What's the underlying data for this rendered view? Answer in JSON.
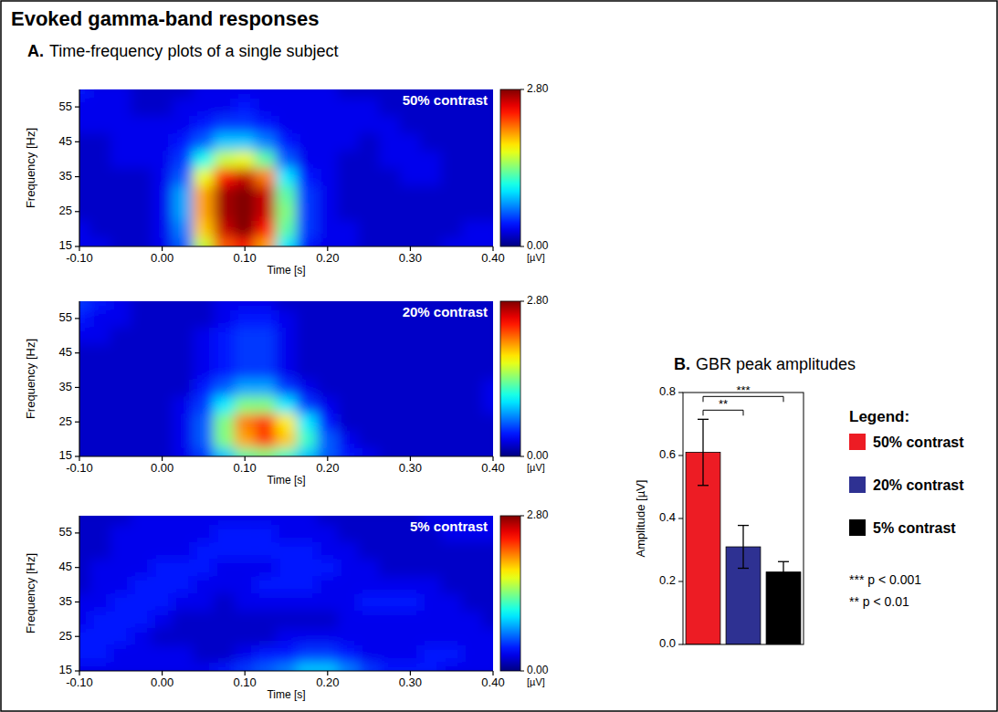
{
  "title": "Evoked gamma-band responses",
  "panels": [
    {
      "label": "A.",
      "title": "Time-frequency plots of a single subject"
    },
    {
      "label": "B.",
      "title": "GBR peak amplitudes"
    }
  ],
  "chart_data": [
    {
      "type": "heatmap",
      "title": "50% contrast",
      "x_label": "Time [s]",
      "y_label": "Frequency [Hz]",
      "x": [
        -0.1,
        -0.075,
        -0.05,
        -0.025,
        0,
        0.025,
        0.05,
        0.075,
        0.1,
        0.125,
        0.15,
        0.175,
        0.2,
        0.225,
        0.25,
        0.275,
        0.3,
        0.325,
        0.35,
        0.375,
        0.4
      ],
      "y": [
        15,
        20,
        25,
        30,
        35,
        40,
        45,
        50,
        55,
        60
      ],
      "cells": [
        [
          0.3,
          0.3,
          0.2,
          0.2,
          0.3,
          0.6,
          1.6,
          2.2,
          2.4,
          2.0,
          1.0,
          0.4,
          0.3,
          0.3,
          0.2,
          0.2,
          0.2,
          0.2,
          0.3,
          0.3,
          0.3
        ],
        [
          0.3,
          0.2,
          0.2,
          0.2,
          0.3,
          0.7,
          1.9,
          2.6,
          2.8,
          2.4,
          1.3,
          0.5,
          0.3,
          0.3,
          0.2,
          0.2,
          0.2,
          0.2,
          0.2,
          0.3,
          0.3
        ],
        [
          0.2,
          0.2,
          0.2,
          0.2,
          0.3,
          0.8,
          2.0,
          2.7,
          2.8,
          2.6,
          1.4,
          0.5,
          0.3,
          0.2,
          0.2,
          0.2,
          0.2,
          0.2,
          0.2,
          0.2,
          0.2
        ],
        [
          0.2,
          0.2,
          0.2,
          0.2,
          0.3,
          0.8,
          2.0,
          2.7,
          2.8,
          2.6,
          1.3,
          0.5,
          0.3,
          0.2,
          0.2,
          0.2,
          0.2,
          0.2,
          0.2,
          0.2,
          0.2
        ],
        [
          0.2,
          0.2,
          0.2,
          0.2,
          0.3,
          0.6,
          1.7,
          2.4,
          2.6,
          2.1,
          1.0,
          0.4,
          0.3,
          0.2,
          0.2,
          0.2,
          0.3,
          0.3,
          0.2,
          0.2,
          0.2
        ],
        [
          0.2,
          0.2,
          0.3,
          0.3,
          0.3,
          0.5,
          1.1,
          1.6,
          1.7,
          1.3,
          0.6,
          0.3,
          0.3,
          0.2,
          0.2,
          0.3,
          0.3,
          0.3,
          0.2,
          0.2,
          0.2
        ],
        [
          0.2,
          0.2,
          0.3,
          0.3,
          0.3,
          0.4,
          0.6,
          0.9,
          0.9,
          0.7,
          0.4,
          0.3,
          0.3,
          0.3,
          0.2,
          0.3,
          0.3,
          0.2,
          0.2,
          0.2,
          0.2
        ],
        [
          0.3,
          0.3,
          0.3,
          0.3,
          0.3,
          0.3,
          0.4,
          0.5,
          0.5,
          0.4,
          0.3,
          0.3,
          0.3,
          0.3,
          0.3,
          0.3,
          0.2,
          0.2,
          0.2,
          0.2,
          0.2
        ],
        [
          0.3,
          0.3,
          0.3,
          0.2,
          0.2,
          0.3,
          0.3,
          0.3,
          0.4,
          0.3,
          0.3,
          0.3,
          0.3,
          0.3,
          0.3,
          0.2,
          0.2,
          0.2,
          0.2,
          0.2,
          0.2
        ],
        [
          0.4,
          0.3,
          0.3,
          0.2,
          0.2,
          0.2,
          0.3,
          0.3,
          0.3,
          0.3,
          0.3,
          0.3,
          0.3,
          0.2,
          0.2,
          0.2,
          0.2,
          0.2,
          0.2,
          0.2,
          0.2
        ]
      ],
      "xlim": [
        -0.1,
        0.4
      ],
      "ylim": [
        15,
        60
      ],
      "xticks": [
        {
          "value": -0.1,
          "label": "-0.10"
        },
        {
          "value": 0,
          "label": "0.00"
        },
        {
          "value": 0.1,
          "label": "0.10"
        },
        {
          "value": 0.2,
          "label": "0.20"
        },
        {
          "value": 0.3,
          "label": "0.30"
        },
        {
          "value": 0.4,
          "label": "0.40"
        }
      ],
      "yticks": [
        15,
        25,
        35,
        45,
        55
      ],
      "color_range": [
        0,
        2.8
      ],
      "color_ticks": [
        {
          "value": 0,
          "label": "0.00"
        },
        {
          "value": 2.8,
          "label": "2.80"
        }
      ],
      "color_label": "[µV]"
    },
    {
      "type": "heatmap",
      "title": "20% contrast",
      "x_label": "Time [s]",
      "y_label": "Frequency [Hz]",
      "x": [
        -0.1,
        -0.075,
        -0.05,
        -0.025,
        0,
        0.025,
        0.05,
        0.075,
        0.1,
        0.125,
        0.15,
        0.175,
        0.2,
        0.225,
        0.25,
        0.275,
        0.3,
        0.325,
        0.35,
        0.375,
        0.4
      ],
      "y": [
        15,
        20,
        25,
        30,
        35,
        40,
        45,
        50,
        55,
        60
      ],
      "cells": [
        [
          0.2,
          0.2,
          0.2,
          0.2,
          0.2,
          0.3,
          0.5,
          0.9,
          1.3,
          1.4,
          1.2,
          0.9,
          0.6,
          0.4,
          0.3,
          0.2,
          0.2,
          0.2,
          0.2,
          0.2,
          0.2
        ],
        [
          0.2,
          0.2,
          0.2,
          0.2,
          0.2,
          0.3,
          0.6,
          1.4,
          2.0,
          2.3,
          1.9,
          1.2,
          0.6,
          0.3,
          0.2,
          0.2,
          0.2,
          0.2,
          0.2,
          0.2,
          0.2
        ],
        [
          0.2,
          0.2,
          0.2,
          0.2,
          0.2,
          0.3,
          0.6,
          1.4,
          2.1,
          2.3,
          1.8,
          1.0,
          0.4,
          0.2,
          0.2,
          0.2,
          0.2,
          0.2,
          0.2,
          0.2,
          0.2
        ],
        [
          0.2,
          0.2,
          0.2,
          0.2,
          0.2,
          0.3,
          0.5,
          1.0,
          1.4,
          1.4,
          1.0,
          0.5,
          0.3,
          0.2,
          0.2,
          0.2,
          0.2,
          0.2,
          0.2,
          0.2,
          0.3
        ],
        [
          0.2,
          0.2,
          0.2,
          0.2,
          0.2,
          0.2,
          0.4,
          0.6,
          0.8,
          0.8,
          0.5,
          0.3,
          0.2,
          0.2,
          0.2,
          0.2,
          0.2,
          0.2,
          0.2,
          0.2,
          0.3
        ],
        [
          0.2,
          0.2,
          0.2,
          0.2,
          0.2,
          0.2,
          0.3,
          0.4,
          0.5,
          0.5,
          0.3,
          0.2,
          0.2,
          0.2,
          0.2,
          0.2,
          0.2,
          0.2,
          0.2,
          0.2,
          0.2
        ],
        [
          0.2,
          0.2,
          0.2,
          0.2,
          0.2,
          0.2,
          0.3,
          0.4,
          0.5,
          0.5,
          0.3,
          0.2,
          0.2,
          0.2,
          0.2,
          0.2,
          0.2,
          0.2,
          0.2,
          0.2,
          0.2
        ],
        [
          0.3,
          0.3,
          0.2,
          0.2,
          0.2,
          0.2,
          0.3,
          0.4,
          0.5,
          0.5,
          0.3,
          0.2,
          0.2,
          0.2,
          0.2,
          0.2,
          0.2,
          0.2,
          0.2,
          0.2,
          0.2
        ],
        [
          0.4,
          0.3,
          0.3,
          0.2,
          0.2,
          0.2,
          0.2,
          0.3,
          0.4,
          0.4,
          0.3,
          0.2,
          0.2,
          0.2,
          0.2,
          0.2,
          0.2,
          0.2,
          0.2,
          0.2,
          0.2
        ],
        [
          0.5,
          0.4,
          0.3,
          0.2,
          0.2,
          0.2,
          0.2,
          0.3,
          0.3,
          0.3,
          0.2,
          0.2,
          0.2,
          0.2,
          0.2,
          0.2,
          0.2,
          0.2,
          0.2,
          0.2,
          0.2
        ]
      ],
      "xlim": [
        -0.1,
        0.4
      ],
      "ylim": [
        15,
        60
      ],
      "xticks": [
        {
          "value": -0.1,
          "label": "-0.10"
        },
        {
          "value": 0,
          "label": "0.00"
        },
        {
          "value": 0.1,
          "label": "0.10"
        },
        {
          "value": 0.2,
          "label": "0.20"
        },
        {
          "value": 0.3,
          "label": "0.30"
        },
        {
          "value": 0.4,
          "label": "0.40"
        }
      ],
      "yticks": [
        15,
        25,
        35,
        45,
        55
      ],
      "color_range": [
        0,
        2.8
      ],
      "color_ticks": [
        {
          "value": 0,
          "label": "0.00"
        },
        {
          "value": 2.8,
          "label": "2.80"
        }
      ],
      "color_label": "[µV]"
    },
    {
      "type": "heatmap",
      "title": "5% contrast",
      "x_label": "Time [s]",
      "y_label": "Frequency [Hz]",
      "x": [
        -0.1,
        -0.075,
        -0.05,
        -0.025,
        0,
        0.025,
        0.05,
        0.075,
        0.1,
        0.125,
        0.15,
        0.175,
        0.2,
        0.225,
        0.25,
        0.275,
        0.3,
        0.325,
        0.35,
        0.375,
        0.4
      ],
      "y": [
        15,
        20,
        25,
        30,
        35,
        40,
        45,
        50,
        55,
        60
      ],
      "cells": [
        [
          0.3,
          0.3,
          0.3,
          0.3,
          0.3,
          0.3,
          0.3,
          0.4,
          0.5,
          0.6,
          0.7,
          0.9,
          0.9,
          0.7,
          0.5,
          0.4,
          0.4,
          0.4,
          0.3,
          0.3,
          0.3
        ],
        [
          0.4,
          0.4,
          0.3,
          0.3,
          0.3,
          0.3,
          0.2,
          0.2,
          0.3,
          0.4,
          0.4,
          0.5,
          0.5,
          0.4,
          0.3,
          0.3,
          0.3,
          0.4,
          0.4,
          0.3,
          0.3
        ],
        [
          0.4,
          0.4,
          0.4,
          0.3,
          0.2,
          0.2,
          0.2,
          0.2,
          0.2,
          0.2,
          0.3,
          0.3,
          0.3,
          0.3,
          0.3,
          0.3,
          0.3,
          0.3,
          0.3,
          0.3,
          0.3
        ],
        [
          0.3,
          0.4,
          0.4,
          0.4,
          0.3,
          0.2,
          0.2,
          0.2,
          0.2,
          0.2,
          0.2,
          0.2,
          0.2,
          0.3,
          0.3,
          0.3,
          0.3,
          0.3,
          0.3,
          0.3,
          0.2
        ],
        [
          0.3,
          0.3,
          0.4,
          0.4,
          0.4,
          0.3,
          0.3,
          0.2,
          0.3,
          0.3,
          0.3,
          0.3,
          0.3,
          0.3,
          0.4,
          0.4,
          0.4,
          0.3,
          0.3,
          0.2,
          0.2
        ],
        [
          0.2,
          0.3,
          0.3,
          0.4,
          0.4,
          0.4,
          0.3,
          0.3,
          0.3,
          0.4,
          0.4,
          0.4,
          0.3,
          0.3,
          0.3,
          0.3,
          0.3,
          0.3,
          0.2,
          0.2,
          0.2
        ],
        [
          0.2,
          0.3,
          0.3,
          0.3,
          0.4,
          0.4,
          0.4,
          0.3,
          0.3,
          0.3,
          0.4,
          0.4,
          0.4,
          0.3,
          0.3,
          0.2,
          0.2,
          0.2,
          0.2,
          0.2,
          0.2
        ],
        [
          0.2,
          0.2,
          0.3,
          0.3,
          0.3,
          0.3,
          0.4,
          0.4,
          0.4,
          0.4,
          0.4,
          0.4,
          0.3,
          0.3,
          0.2,
          0.2,
          0.2,
          0.2,
          0.2,
          0.2,
          0.2
        ],
        [
          0.2,
          0.2,
          0.3,
          0.3,
          0.3,
          0.3,
          0.3,
          0.4,
          0.4,
          0.4,
          0.3,
          0.3,
          0.3,
          0.2,
          0.2,
          0.2,
          0.2,
          0.2,
          0.3,
          0.3,
          0.3
        ],
        [
          0.2,
          0.2,
          0.2,
          0.3,
          0.3,
          0.3,
          0.3,
          0.3,
          0.3,
          0.3,
          0.3,
          0.3,
          0.2,
          0.2,
          0.2,
          0.2,
          0.2,
          0.3,
          0.3,
          0.3,
          0.3
        ]
      ],
      "xlim": [
        -0.1,
        0.4
      ],
      "ylim": [
        15,
        60
      ],
      "xticks": [
        {
          "value": -0.1,
          "label": "-0.10"
        },
        {
          "value": 0,
          "label": "0.00"
        },
        {
          "value": 0.1,
          "label": "0.10"
        },
        {
          "value": 0.2,
          "label": "0.20"
        },
        {
          "value": 0.3,
          "label": "0.30"
        },
        {
          "value": 0.4,
          "label": "0.40"
        }
      ],
      "yticks": [
        15,
        25,
        35,
        45,
        55
      ],
      "color_range": [
        0,
        2.8
      ],
      "color_ticks": [
        {
          "value": 0,
          "label": "0.00"
        },
        {
          "value": 2.8,
          "label": "2.80"
        }
      ],
      "color_label": "[µV]"
    },
    {
      "type": "bar",
      "y_label": "Amplitude [µV]",
      "categories": [
        "50% contrast",
        "20% contrast",
        "5% contrast"
      ],
      "values": [
        0.61,
        0.31,
        0.23
      ],
      "errors": [
        0.105,
        0.068,
        0.033
      ],
      "colors": [
        "#ed1c24",
        "#2e3192",
        "#000000"
      ],
      "ylim": [
        0,
        0.8
      ],
      "yticks": [
        {
          "value": 0,
          "label": "0.0"
        },
        {
          "value": 0.2,
          "label": "0.2"
        },
        {
          "value": 0.4,
          "label": "0.4"
        },
        {
          "value": 0.6,
          "label": "0.6"
        },
        {
          "value": 0.8,
          "label": "0.8"
        }
      ],
      "tick_labels": "y",
      "legend": "right",
      "legend_title": "Legend:",
      "annotations": [
        {
          "from": 0,
          "to": 1,
          "label": "**"
        },
        {
          "from": 0,
          "to": 2,
          "label": "***"
        }
      ],
      "significance_key": [
        "*** p < 0.001",
        "** p < 0.01"
      ]
    }
  ]
}
